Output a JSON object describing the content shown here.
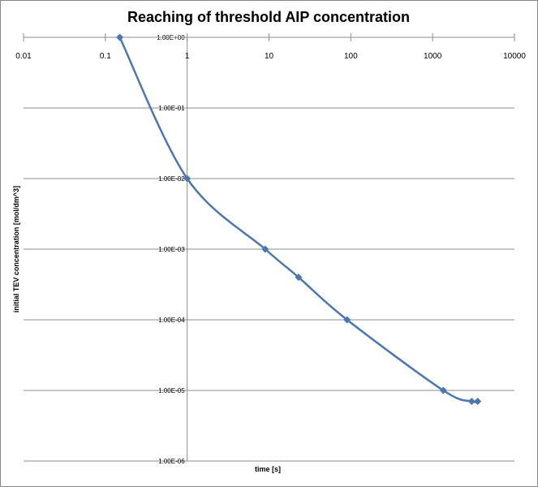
{
  "chart_data": {
    "type": "line",
    "title": "Reaching of threshold AIP concentration",
    "xlabel": "time [s]",
    "ylabel": "initial TEV concentration  [mol/dm^3]",
    "x_scale": "log",
    "y_scale": "log",
    "xlim": [
      0.01,
      10000
    ],
    "ylim": [
      1e-06,
      1
    ],
    "x_ticks": [
      "0.01",
      "0.1",
      "1",
      "10",
      "100",
      "1000",
      "10000"
    ],
    "y_ticks": [
      "1.00E+00",
      "1.00E-01",
      "1.00E-02",
      "1.00E-03",
      "1.00E-04",
      "1.00E-05",
      "1.00E-06"
    ],
    "x_axis_position": "top",
    "y_axis_crosses_x": 1,
    "grid": "horizontal major",
    "smoothed": true,
    "marker": "diamond",
    "series": [
      {
        "color": "#4a76b2",
        "x": [
          0.15,
          1,
          9,
          23,
          90,
          1350,
          3000,
          3550
        ],
        "y": [
          1,
          0.01,
          0.001,
          0.0004,
          0.0001,
          1e-05,
          7e-06,
          7e-06
        ]
      }
    ]
  }
}
